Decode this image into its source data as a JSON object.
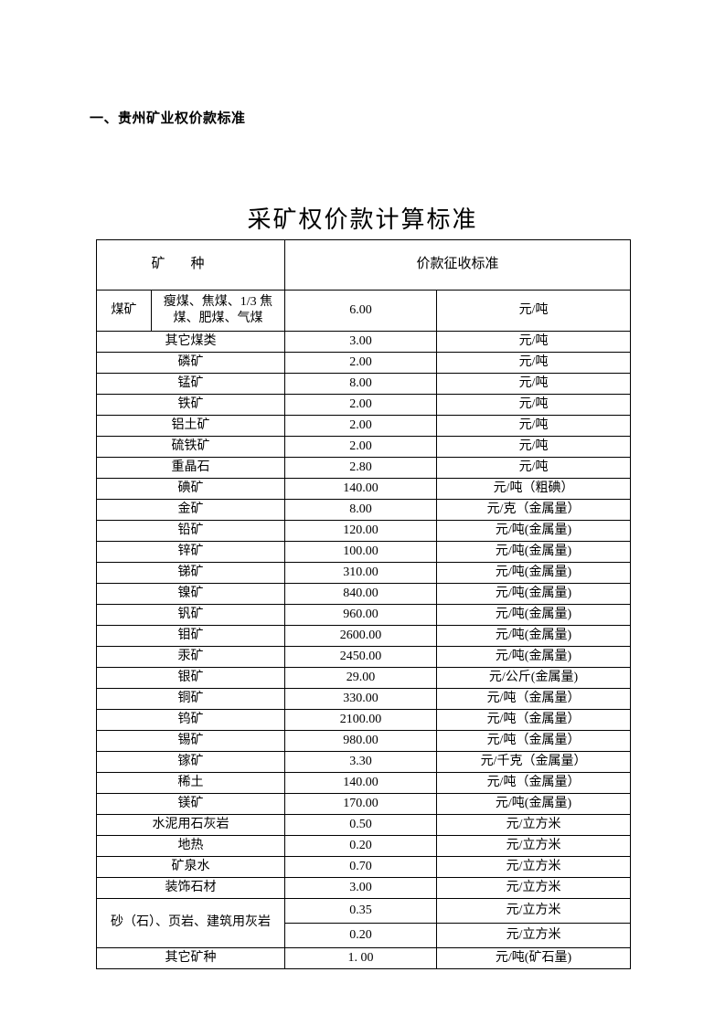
{
  "section_heading": "一、贵州矿业权价款标准",
  "title": "采矿权价款计算标准",
  "header": {
    "mineral": "矿",
    "type_suffix": "种",
    "standard": "价款征收标准"
  },
  "coal_row": {
    "label": "煤矿",
    "subtype": "瘦煤、焦煤、1/3 焦煤、肥煤、气煤",
    "value": "6.00",
    "unit": "元/吨"
  },
  "rows": [
    {
      "mineral": "其它煤类",
      "value": "3.00",
      "unit": "元/吨"
    },
    {
      "mineral": "磷矿",
      "value": "2.00",
      "unit": "元/吨"
    },
    {
      "mineral": "锰矿",
      "value": "8.00",
      "unit": "元/吨"
    },
    {
      "mineral": "铁矿",
      "value": "2.00",
      "unit": "元/吨"
    },
    {
      "mineral": "铝土矿",
      "value": "2.00",
      "unit": "元/吨"
    },
    {
      "mineral": "硫铁矿",
      "value": "2.00",
      "unit": "元/吨"
    },
    {
      "mineral": "重晶石",
      "value": "2.80",
      "unit": "元/吨"
    },
    {
      "mineral": "碘矿",
      "value": "140.00",
      "unit": "元/吨（粗碘）"
    },
    {
      "mineral": "金矿",
      "value": "8.00",
      "unit": "元/克（金属量）"
    },
    {
      "mineral": "铅矿",
      "value": "120.00",
      "unit": "元/吨(金属量)"
    },
    {
      "mineral": "锌矿",
      "value": "100.00",
      "unit": "元/吨(金属量)"
    },
    {
      "mineral": "锑矿",
      "value": "310.00",
      "unit": "元/吨(金属量)"
    },
    {
      "mineral": "镍矿",
      "value": "840.00",
      "unit": "元/吨(金属量)"
    },
    {
      "mineral": "钒矿",
      "value": "960.00",
      "unit": "元/吨(金属量)"
    },
    {
      "mineral": "钼矿",
      "value": "2600.00",
      "unit": "元/吨(金属量)"
    },
    {
      "mineral": "汞矿",
      "value": "2450.00",
      "unit": "元/吨(金属量)"
    },
    {
      "mineral": "银矿",
      "value": "29.00",
      "unit": "元/公斤(金属量)"
    },
    {
      "mineral": "铜矿",
      "value": "330.00",
      "unit": "元/吨（金属量）"
    },
    {
      "mineral": "钨矿",
      "value": "2100.00",
      "unit": "元/吨（金属量）"
    },
    {
      "mineral": "锡矿",
      "value": "980.00",
      "unit": "元/吨（金属量）"
    },
    {
      "mineral": "镓矿",
      "value": "3.30",
      "unit": "元/千克（金属量）"
    },
    {
      "mineral": "稀土",
      "value": "140.00",
      "unit": "元/吨（金属量）"
    },
    {
      "mineral": "镁矿",
      "value": "170.00",
      "unit": "元/吨(金属量)"
    },
    {
      "mineral": "水泥用石灰岩",
      "value": "0.50",
      "unit": "元/立方米"
    },
    {
      "mineral": "地热",
      "value": "0.20",
      "unit": "元/立方米"
    },
    {
      "mineral": "矿泉水",
      "value": "0.70",
      "unit": "元/立方米"
    },
    {
      "mineral": "装饰石材",
      "value": "3.00",
      "unit": "元/立方米"
    }
  ],
  "sand_row": {
    "label": "砂（石）、页岩、建筑用灰岩",
    "rows": [
      {
        "value": "0.35",
        "unit": "元/立方米"
      },
      {
        "value": "0.20",
        "unit": "元/立方米"
      }
    ]
  },
  "last_row": {
    "mineral": "其它矿种",
    "value": "1. 00",
    "unit": "元/吨(矿石量)"
  },
  "col_widths": {
    "c1": 60,
    "c2": 146,
    "c3": 166,
    "c4": 212
  }
}
